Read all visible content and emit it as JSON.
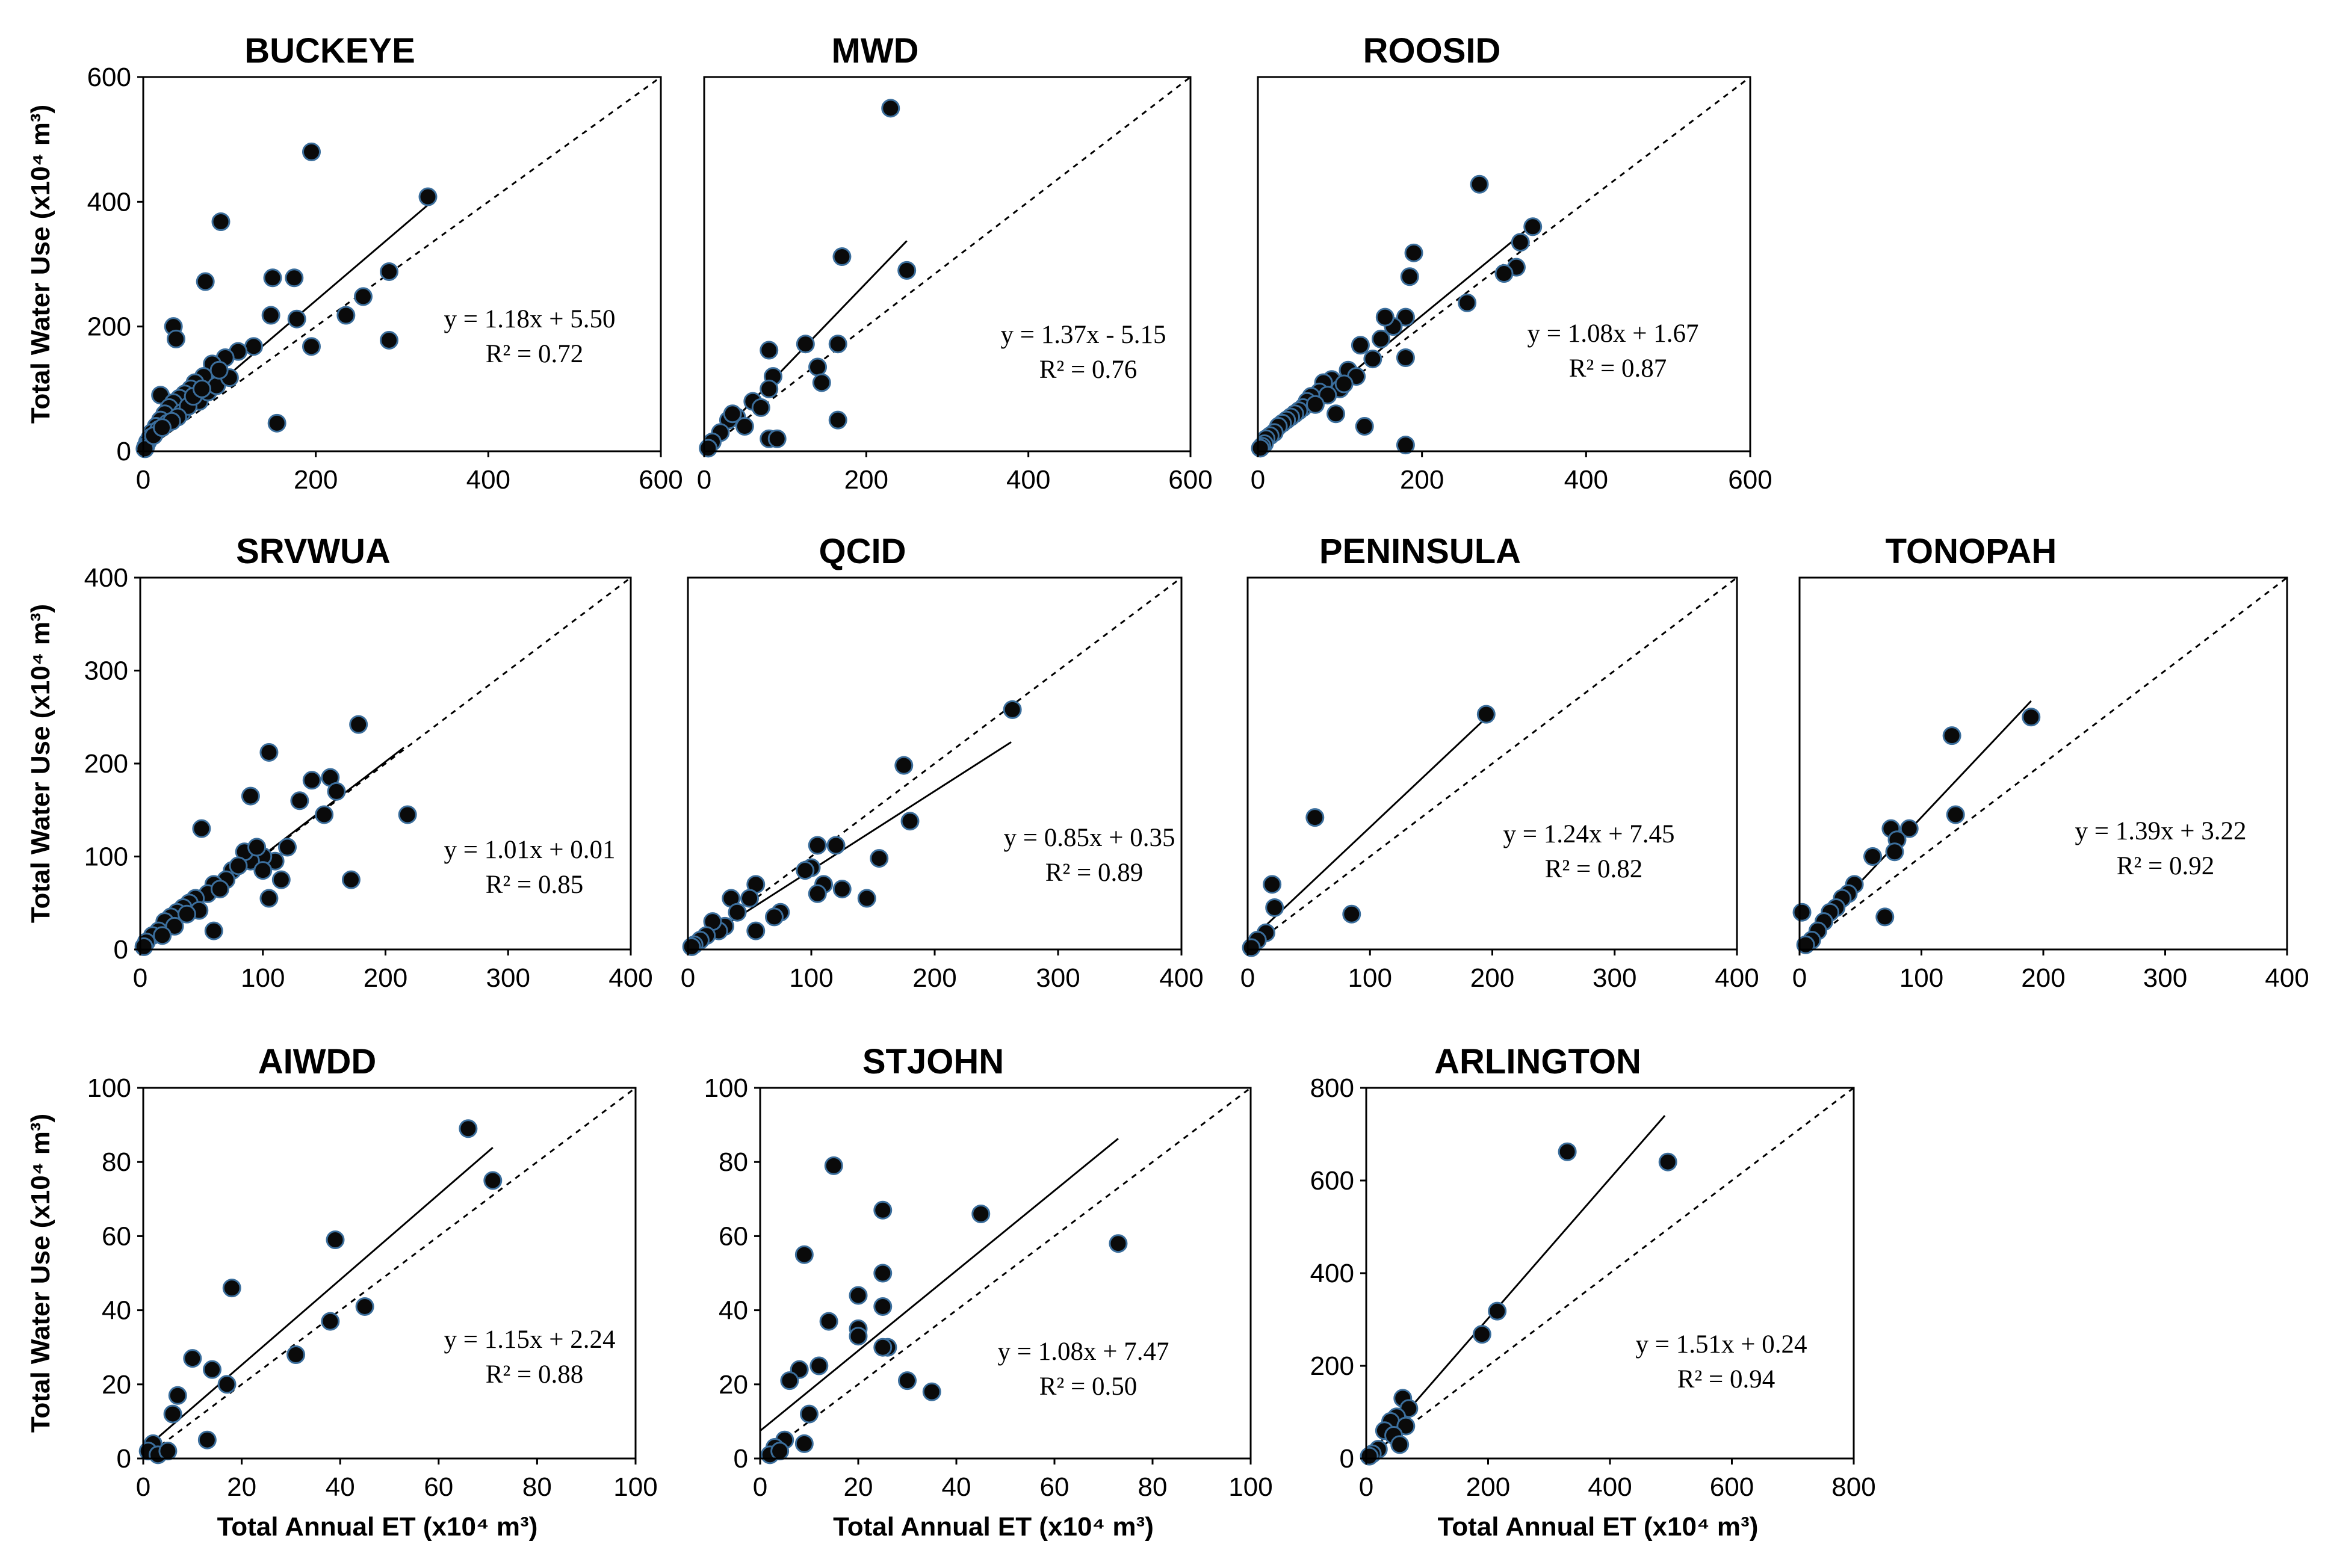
{
  "figure": {
    "ylabel": "Total Water Use (x10⁴ m³)",
    "xlabel": "Total Annual ET (x10⁴ m³)"
  },
  "chart_data": [
    {
      "type": "scatter",
      "title": "BUCKEYE",
      "xlim": [
        0,
        600
      ],
      "ylim": [
        0,
        600
      ],
      "xticks": [
        "0",
        "200",
        "400",
        "600"
      ],
      "yticks": [
        "0",
        "200",
        "400",
        "600"
      ],
      "equation": "y = 1.18x + 5.50",
      "r2": "R² = 0.72",
      "fit": {
        "slope": 1.18,
        "intercept": 5.5,
        "x_range": [
          0,
          330
        ]
      },
      "identity_line": true,
      "points": [
        [
          330,
          408
        ],
        [
          195,
          480
        ],
        [
          90,
          368
        ],
        [
          72,
          272
        ],
        [
          150,
          278
        ],
        [
          175,
          278
        ],
        [
          148,
          218
        ],
        [
          178,
          212
        ],
        [
          285,
          288
        ],
        [
          255,
          248
        ],
        [
          235,
          218
        ],
        [
          195,
          168
        ],
        [
          285,
          178
        ],
        [
          155,
          45
        ],
        [
          35,
          200
        ],
        [
          38,
          180
        ],
        [
          20,
          90
        ],
        [
          128,
          168
        ],
        [
          110,
          160
        ],
        [
          95,
          150
        ],
        [
          80,
          140
        ],
        [
          70,
          120
        ],
        [
          60,
          110
        ],
        [
          55,
          100
        ],
        [
          48,
          92
        ],
        [
          42,
          85
        ],
        [
          35,
          78
        ],
        [
          30,
          70
        ],
        [
          25,
          60
        ],
        [
          20,
          50
        ],
        [
          15,
          40
        ],
        [
          10,
          30
        ],
        [
          8,
          22
        ],
        [
          5,
          15
        ],
        [
          3,
          8
        ],
        [
          2,
          4
        ],
        [
          65,
          80
        ],
        [
          75,
          95
        ],
        [
          85,
          105
        ],
        [
          100,
          118
        ],
        [
          45,
          62
        ],
        [
          52,
          72
        ],
        [
          28,
          45
        ],
        [
          18,
          35
        ],
        [
          12,
          25
        ],
        [
          88,
          130
        ],
        [
          58,
          88
        ],
        [
          68,
          100
        ],
        [
          40,
          55
        ],
        [
          33,
          48
        ],
        [
          22,
          38
        ]
      ]
    },
    {
      "type": "scatter",
      "title": "MWD",
      "xlim": [
        0,
        600
      ],
      "ylim": [
        0,
        600
      ],
      "xticks": [
        "0",
        "200",
        "400",
        "600"
      ],
      "yticks": [],
      "equation": "y = 1.37x - 5.15",
      "r2": "R² = 0.76",
      "fit": {
        "slope": 1.37,
        "intercept": -5.15,
        "x_range": [
          0,
          250
        ]
      },
      "identity_line": true,
      "points": [
        [
          230,
          550
        ],
        [
          170,
          312
        ],
        [
          250,
          290
        ],
        [
          125,
          172
        ],
        [
          165,
          172
        ],
        [
          140,
          135
        ],
        [
          145,
          110
        ],
        [
          80,
          162
        ],
        [
          85,
          120
        ],
        [
          80,
          100
        ],
        [
          60,
          80
        ],
        [
          70,
          70
        ],
        [
          40,
          55
        ],
        [
          30,
          50
        ],
        [
          20,
          30
        ],
        [
          10,
          15
        ],
        [
          5,
          5
        ],
        [
          165,
          50
        ],
        [
          80,
          20
        ],
        [
          90,
          20
        ],
        [
          50,
          40
        ],
        [
          35,
          60
        ]
      ]
    },
    {
      "type": "scatter",
      "title": "ROOSID",
      "xlim": [
        0,
        600
      ],
      "ylim": [
        0,
        600
      ],
      "xticks": [
        "0",
        "200",
        "400",
        "600"
      ],
      "yticks": [],
      "equation": "y = 1.08x + 1.67",
      "r2": "R² = 0.87",
      "fit": {
        "slope": 1.08,
        "intercept": 1.67,
        "x_range": [
          0,
          340
        ]
      },
      "identity_line": true,
      "points": [
        [
          270,
          428
        ],
        [
          335,
          360
        ],
        [
          320,
          335
        ],
        [
          315,
          295
        ],
        [
          300,
          285
        ],
        [
          255,
          238
        ],
        [
          190,
          318
        ],
        [
          185,
          280
        ],
        [
          180,
          215
        ],
        [
          165,
          200
        ],
        [
          155,
          215
        ],
        [
          150,
          180
        ],
        [
          180,
          150
        ],
        [
          125,
          170
        ],
        [
          140,
          148
        ],
        [
          180,
          10
        ],
        [
          110,
          130
        ],
        [
          90,
          115
        ],
        [
          80,
          110
        ],
        [
          75,
          95
        ],
        [
          65,
          88
        ],
        [
          60,
          80
        ],
        [
          55,
          70
        ],
        [
          50,
          65
        ],
        [
          45,
          60
        ],
        [
          40,
          55
        ],
        [
          35,
          50
        ],
        [
          30,
          45
        ],
        [
          25,
          40
        ],
        [
          20,
          30
        ],
        [
          15,
          25
        ],
        [
          10,
          20
        ],
        [
          8,
          12
        ],
        [
          5,
          8
        ],
        [
          3,
          5
        ],
        [
          100,
          100
        ],
        [
          85,
          90
        ],
        [
          70,
          75
        ],
        [
          95,
          60
        ],
        [
          130,
          40
        ],
        [
          120,
          120
        ],
        [
          105,
          108
        ]
      ]
    },
    {
      "type": "scatter",
      "title": "SRVWUA",
      "xlim": [
        0,
        400
      ],
      "ylim": [
        0,
        400
      ],
      "xticks": [
        "0",
        "100",
        "200",
        "300",
        "400"
      ],
      "yticks": [
        "0",
        "100",
        "200",
        "300",
        "400"
      ],
      "equation": "y = 1.01x + 0.01",
      "r2": "R² = 0.85",
      "fit": {
        "slope": 1.01,
        "intercept": 0.01,
        "x_range": [
          0,
          215
        ]
      },
      "identity_line": true,
      "points": [
        [
          178,
          242
        ],
        [
          105,
          212
        ],
        [
          218,
          145
        ],
        [
          172,
          75
        ],
        [
          155,
          185
        ],
        [
          160,
          170
        ],
        [
          140,
          182
        ],
        [
          130,
          160
        ],
        [
          150,
          145
        ],
        [
          90,
          165
        ],
        [
          120,
          110
        ],
        [
          110,
          95
        ],
        [
          100,
          100
        ],
        [
          90,
          95
        ],
        [
          85,
          105
        ],
        [
          75,
          85
        ],
        [
          70,
          75
        ],
        [
          60,
          70
        ],
        [
          55,
          60
        ],
        [
          50,
          130
        ],
        [
          45,
          55
        ],
        [
          40,
          50
        ],
        [
          35,
          45
        ],
        [
          30,
          40
        ],
        [
          25,
          35
        ],
        [
          20,
          30
        ],
        [
          15,
          20
        ],
        [
          10,
          15
        ],
        [
          5,
          8
        ],
        [
          3,
          3
        ],
        [
          65,
          65
        ],
        [
          80,
          90
        ],
        [
          95,
          110
        ],
        [
          105,
          55
        ],
        [
          60,
          20
        ],
        [
          115,
          75
        ],
        [
          48,
          42
        ],
        [
          38,
          38
        ],
        [
          28,
          25
        ],
        [
          18,
          15
        ],
        [
          100,
          85
        ]
      ]
    },
    {
      "type": "scatter",
      "title": "QCID",
      "xlim": [
        0,
        400
      ],
      "ylim": [
        0,
        400
      ],
      "xticks": [
        "0",
        "100",
        "200",
        "300",
        "400"
      ],
      "yticks": [],
      "equation": "y = 0.85x + 0.35",
      "r2": "R² = 0.89",
      "fit": {
        "slope": 0.85,
        "intercept": 0.35,
        "x_range": [
          0,
          262
        ]
      },
      "identity_line": true,
      "points": [
        [
          263,
          258
        ],
        [
          175,
          198
        ],
        [
          180,
          138
        ],
        [
          155,
          98
        ],
        [
          145,
          55
        ],
        [
          120,
          112
        ],
        [
          105,
          112
        ],
        [
          100,
          88
        ],
        [
          95,
          85
        ],
        [
          110,
          70
        ],
        [
          105,
          60
        ],
        [
          125,
          65
        ],
        [
          75,
          40
        ],
        [
          70,
          35
        ],
        [
          55,
          70
        ],
        [
          50,
          55
        ],
        [
          55,
          20
        ],
        [
          35,
          55
        ],
        [
          30,
          25
        ],
        [
          25,
          20
        ],
        [
          20,
          30
        ],
        [
          15,
          15
        ],
        [
          10,
          10
        ],
        [
          5,
          5
        ],
        [
          3,
          3
        ],
        [
          40,
          40
        ]
      ]
    },
    {
      "type": "scatter",
      "title": "PENINSULA",
      "xlim": [
        0,
        400
      ],
      "ylim": [
        0,
        400
      ],
      "xticks": [
        "0",
        "100",
        "200",
        "300",
        "400"
      ],
      "yticks": [],
      "equation": "y = 1.24x + 7.45",
      "r2": "R² = 0.82",
      "fit": {
        "slope": 1.24,
        "intercept": 7.45,
        "x_range": [
          0,
          195
        ]
      },
      "identity_line": true,
      "points": [
        [
          195,
          253
        ],
        [
          55,
          142
        ],
        [
          85,
          38
        ],
        [
          20,
          70
        ],
        [
          22,
          45
        ],
        [
          15,
          18
        ],
        [
          8,
          10
        ],
        [
          3,
          2
        ]
      ]
    },
    {
      "type": "scatter",
      "title": "TONOPAH",
      "xlim": [
        0,
        400
      ],
      "ylim": [
        0,
        400
      ],
      "xticks": [
        "0",
        "100",
        "200",
        "300",
        "400"
      ],
      "yticks": [],
      "equation": "y = 1.39x + 3.22",
      "r2": "R² = 0.92",
      "fit": {
        "slope": 1.39,
        "intercept": 3.22,
        "x_range": [
          0,
          190
        ]
      },
      "identity_line": true,
      "points": [
        [
          190,
          250
        ],
        [
          125,
          230
        ],
        [
          128,
          145
        ],
        [
          90,
          130
        ],
        [
          75,
          130
        ],
        [
          80,
          118
        ],
        [
          78,
          105
        ],
        [
          60,
          100
        ],
        [
          45,
          70
        ],
        [
          40,
          60
        ],
        [
          35,
          55
        ],
        [
          30,
          45
        ],
        [
          25,
          40
        ],
        [
          20,
          30
        ],
        [
          15,
          20
        ],
        [
          10,
          10
        ],
        [
          5,
          5
        ],
        [
          2,
          40
        ],
        [
          70,
          35
        ]
      ]
    },
    {
      "type": "scatter",
      "title": "AIWDD",
      "xlim": [
        0,
        100
      ],
      "ylim": [
        0,
        100
      ],
      "xticks": [
        "0",
        "20",
        "40",
        "60",
        "80",
        "100"
      ],
      "yticks": [
        "0",
        "20",
        "40",
        "60",
        "80",
        "100"
      ],
      "equation": "y = 1.15x + 2.24",
      "r2": "R² = 0.88",
      "fit": {
        "slope": 1.15,
        "intercept": 2.24,
        "x_range": [
          0,
          71
        ]
      },
      "identity_line": true,
      "points": [
        [
          66,
          89
        ],
        [
          71,
          75
        ],
        [
          39,
          59
        ],
        [
          45,
          41
        ],
        [
          38,
          37
        ],
        [
          31,
          28
        ],
        [
          18,
          46
        ],
        [
          17,
          20
        ],
        [
          10,
          27
        ],
        [
          14,
          24
        ],
        [
          7,
          17
        ],
        [
          6,
          12
        ],
        [
          13,
          5
        ],
        [
          2,
          4
        ],
        [
          1,
          2
        ],
        [
          3,
          1
        ],
        [
          5,
          2
        ]
      ]
    },
    {
      "type": "scatter",
      "title": "STJOHN",
      "xlim": [
        0,
        100
      ],
      "ylim": [
        0,
        100
      ],
      "xticks": [
        "0",
        "20",
        "40",
        "60",
        "80",
        "100"
      ],
      "yticks": [
        "0",
        "20",
        "40",
        "60",
        "80",
        "100"
      ],
      "equation": "y = 1.08x + 7.47",
      "r2": "R² = 0.50",
      "fit": {
        "slope": 1.08,
        "intercept": 7.47,
        "x_range": [
          0,
          73
        ]
      },
      "identity_line": true,
      "points": [
        [
          15,
          79
        ],
        [
          25,
          67
        ],
        [
          45,
          66
        ],
        [
          73,
          58
        ],
        [
          9,
          55
        ],
        [
          25,
          50
        ],
        [
          20,
          44
        ],
        [
          25,
          41
        ],
        [
          14,
          37
        ],
        [
          20,
          35
        ],
        [
          20,
          33
        ],
        [
          26,
          30
        ],
        [
          25,
          30
        ],
        [
          8,
          24
        ],
        [
          12,
          25
        ],
        [
          6,
          21
        ],
        [
          10,
          12
        ],
        [
          30,
          21
        ],
        [
          35,
          18
        ],
        [
          9,
          4
        ],
        [
          5,
          5
        ],
        [
          3,
          3
        ],
        [
          2,
          1
        ],
        [
          4,
          2
        ]
      ]
    },
    {
      "type": "scatter",
      "title": "ARLINGTON",
      "xlim": [
        0,
        800
      ],
      "ylim": [
        0,
        800
      ],
      "xticks": [
        "0",
        "200",
        "400",
        "600",
        "800"
      ],
      "yticks": [
        "0",
        "200",
        "400",
        "600",
        "800"
      ],
      "equation": "y = 1.51x + 0.24",
      "r2": "R² = 0.94",
      "fit": {
        "slope": 1.51,
        "intercept": 0.24,
        "x_range": [
          0,
          490
        ]
      },
      "identity_line": true,
      "points": [
        [
          330,
          662
        ],
        [
          495,
          640
        ],
        [
          215,
          318
        ],
        [
          190,
          268
        ],
        [
          60,
          130
        ],
        [
          70,
          108
        ],
        [
          50,
          90
        ],
        [
          40,
          80
        ],
        [
          65,
          70
        ],
        [
          30,
          60
        ],
        [
          45,
          50
        ],
        [
          55,
          30
        ],
        [
          20,
          20
        ],
        [
          10,
          10
        ],
        [
          5,
          5
        ]
      ]
    }
  ]
}
